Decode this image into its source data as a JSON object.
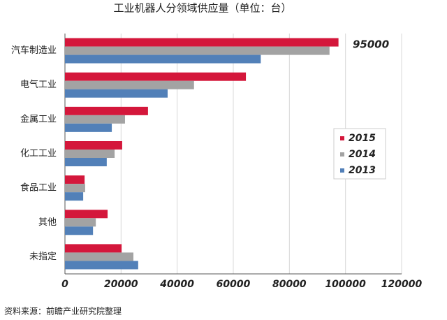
{
  "chart_data": {
    "type": "hbar",
    "title": "工业机器人分领域供应量（单位：台）",
    "categories": [
      "汽车制造业",
      "电气工业",
      "金属工业",
      "化工工业",
      "食品工业",
      "其他",
      "未指定"
    ],
    "series": [
      {
        "name": "2015",
        "color": "#d4173b",
        "values": [
          97500,
          64500,
          29600,
          20400,
          7000,
          15200,
          20200
        ]
      },
      {
        "name": "2014",
        "color": "#a3a3a3",
        "values": [
          94300,
          46000,
          21400,
          17700,
          7200,
          11000,
          24400
        ]
      },
      {
        "name": "2013",
        "color": "#5280b8",
        "values": [
          69800,
          36600,
          16700,
          14900,
          6500,
          10000,
          26100
        ]
      }
    ],
    "xlim": [
      0,
      120000
    ],
    "xticks": [
      0,
      20000,
      40000,
      60000,
      80000,
      100000,
      120000
    ],
    "grid": true,
    "legend": "right",
    "annotations": [
      "95000"
    ],
    "source": "资料来源：前瞻产业研究院整理"
  }
}
